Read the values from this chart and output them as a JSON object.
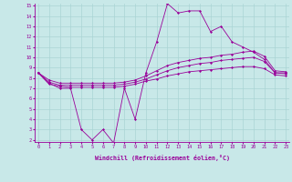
{
  "xlabel": "Windchill (Refroidissement éolien,°C)",
  "x_values": [
    0,
    1,
    2,
    3,
    4,
    5,
    6,
    7,
    8,
    9,
    10,
    11,
    12,
    13,
    14,
    15,
    16,
    17,
    18,
    19,
    20,
    21,
    22,
    23
  ],
  "line1": [
    8.5,
    7.5,
    7.0,
    7.0,
    3.0,
    2.0,
    3.0,
    1.7,
    7.0,
    4.0,
    8.5,
    11.5,
    15.2,
    14.3,
    14.5,
    14.5,
    12.5,
    13.0,
    11.5,
    11.0,
    10.5,
    9.8,
    8.5,
    8.5
  ],
  "line2": [
    8.5,
    7.8,
    7.5,
    7.5,
    7.5,
    7.5,
    7.5,
    7.5,
    7.6,
    7.8,
    8.2,
    8.7,
    9.2,
    9.5,
    9.7,
    9.9,
    10.0,
    10.2,
    10.3,
    10.5,
    10.6,
    10.1,
    8.7,
    8.6
  ],
  "line3": [
    8.5,
    7.6,
    7.3,
    7.3,
    7.3,
    7.3,
    7.3,
    7.3,
    7.4,
    7.6,
    7.9,
    8.3,
    8.7,
    9.0,
    9.2,
    9.4,
    9.5,
    9.7,
    9.8,
    9.9,
    10.0,
    9.6,
    8.5,
    8.4
  ],
  "line4": [
    8.5,
    7.4,
    7.2,
    7.1,
    7.1,
    7.1,
    7.1,
    7.1,
    7.2,
    7.4,
    7.7,
    7.9,
    8.2,
    8.4,
    8.6,
    8.7,
    8.8,
    8.9,
    9.0,
    9.1,
    9.1,
    8.9,
    8.3,
    8.2
  ],
  "line_color": "#990099",
  "bg_color": "#c8e8e8",
  "grid_color": "#aad4d4",
  "ylim": [
    2,
    15
  ],
  "xlim": [
    0,
    23
  ],
  "yticks": [
    2,
    3,
    4,
    5,
    6,
    7,
    8,
    9,
    10,
    11,
    12,
    13,
    14,
    15
  ]
}
